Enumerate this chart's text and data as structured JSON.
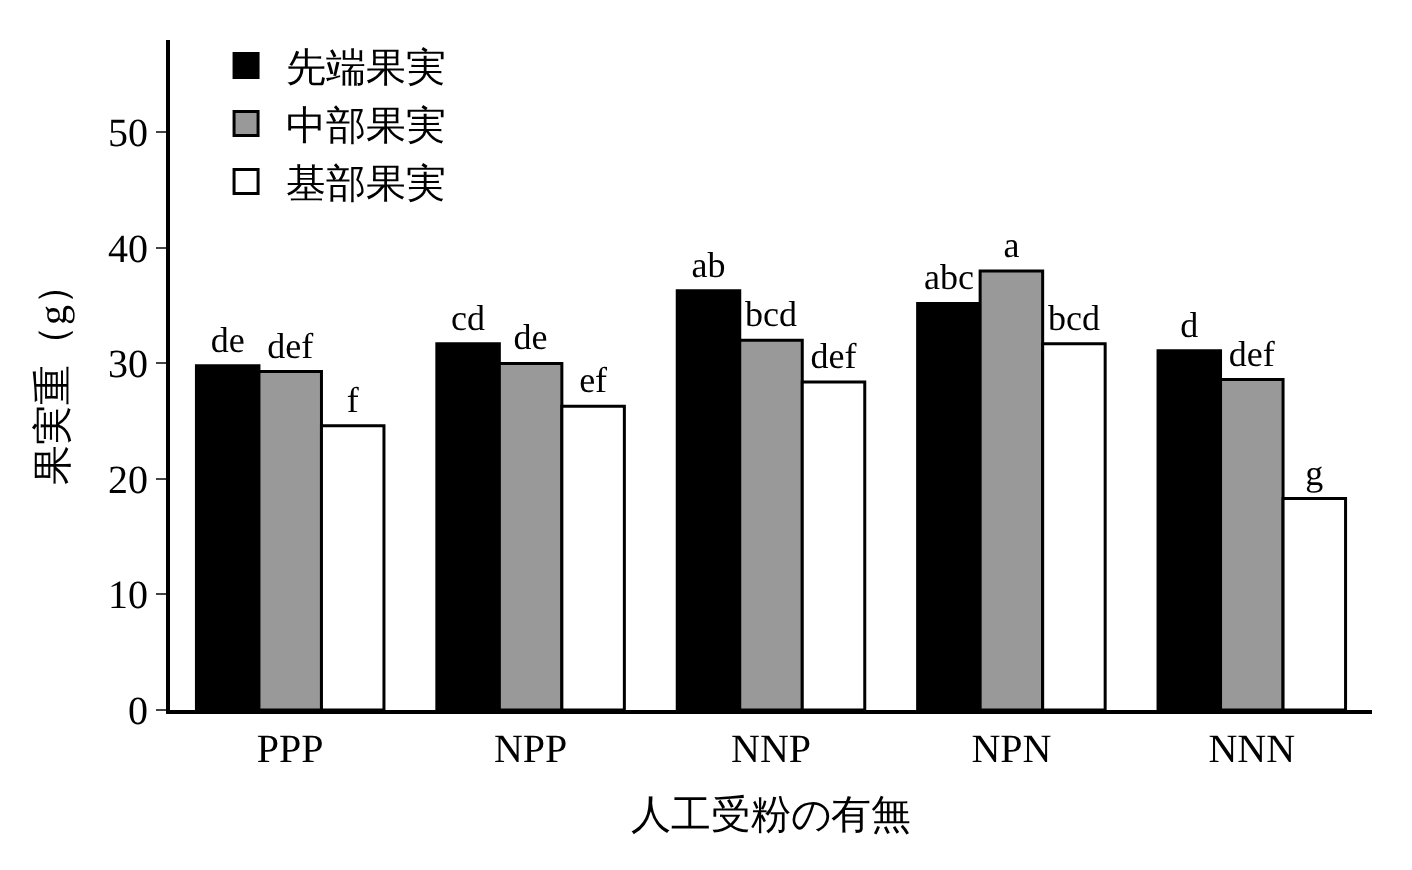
{
  "chart_data": {
    "type": "bar",
    "xlabel": "人工受粉の有無",
    "ylabel": "果実重（g）",
    "categories": [
      "PPP",
      "NPP",
      "NNP",
      "NPN",
      "NNN"
    ],
    "series": [
      {
        "name": "先端果実",
        "color": "#000000",
        "values": [
          29.8,
          31.7,
          36.3,
          35.2,
          31.1
        ],
        "value_labels": [
          "de",
          "cd",
          "ab",
          "abc",
          "d"
        ]
      },
      {
        "name": "中部果実",
        "color": "#999999",
        "values": [
          29.3,
          30.0,
          32.0,
          38.0,
          28.6
        ],
        "value_labels": [
          "def",
          "de",
          "bcd",
          "a",
          "def"
        ]
      },
      {
        "name": "基部果実",
        "color": "#ffffff",
        "values": [
          24.6,
          26.3,
          28.4,
          31.7,
          18.3
        ],
        "value_labels": [
          "f",
          "ef",
          "def",
          "bcd",
          "g"
        ]
      }
    ],
    "ylim": [
      0,
      58
    ],
    "yticks": [
      0,
      10,
      20,
      30,
      40,
      50
    ],
    "legend": "top left"
  }
}
